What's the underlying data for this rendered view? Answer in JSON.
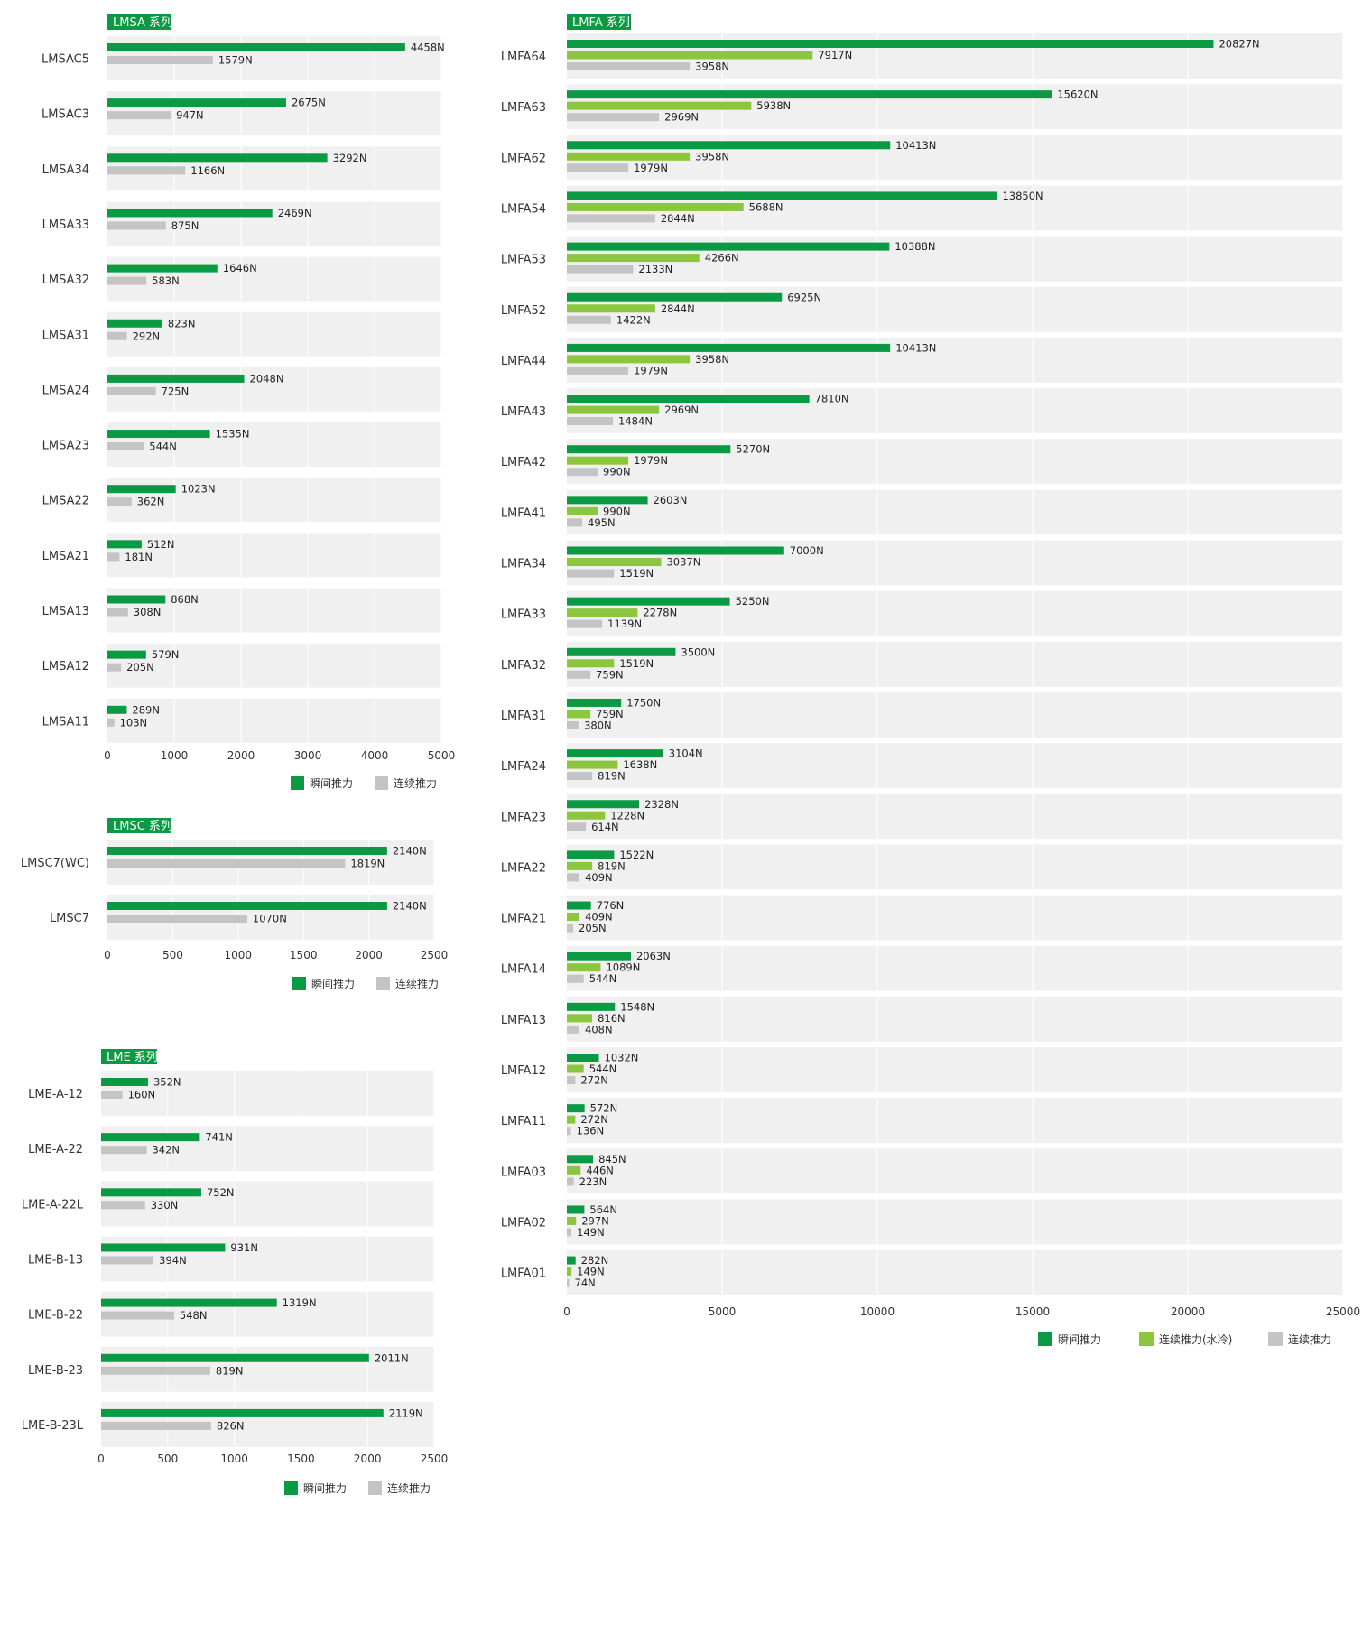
{
  "chart_data": [
    {
      "type": "bar",
      "title": "LMSA 系列",
      "xlim": [
        0,
        5000
      ],
      "xticks": [
        0,
        1000,
        2000,
        3000,
        4000,
        5000
      ],
      "categories": [
        "LMSAC5",
        "LMSAC3",
        "LMSA34",
        "LMSA33",
        "LMSA32",
        "LMSA31",
        "LMSA24",
        "LMSA23",
        "LMSA22",
        "LMSA21",
        "LMSA13",
        "LMSA12",
        "LMSA11"
      ],
      "series": [
        {
          "name": "瞬间推力",
          "color": "#0b9a43",
          "values": [
            4458,
            2675,
            3292,
            2469,
            1646,
            823,
            2048,
            1535,
            1023,
            512,
            868,
            579,
            289
          ]
        },
        {
          "name": "连续推力",
          "color": "#c4c4c4",
          "values": [
            1579,
            947,
            1166,
            875,
            583,
            292,
            725,
            544,
            362,
            181,
            308,
            205,
            103
          ]
        }
      ],
      "value_suffix": "N",
      "legend": "bottom-right",
      "grid": true
    },
    {
      "type": "bar",
      "title": "LMSC 系列",
      "xlim": [
        0,
        2500
      ],
      "xticks": [
        0,
        500,
        1000,
        1500,
        2000,
        2500
      ],
      "categories": [
        "LMSC7(WC)",
        "LMSC7"
      ],
      "series": [
        {
          "name": "瞬间推力",
          "color": "#0b9a43",
          "values": [
            2140,
            2140
          ]
        },
        {
          "name": "连续推力",
          "color": "#c4c4c4",
          "values": [
            1819,
            1070
          ]
        }
      ],
      "value_suffix": "N",
      "legend": "bottom-right",
      "grid": true
    },
    {
      "type": "bar",
      "title": "LME 系列",
      "xlim": [
        0,
        2500
      ],
      "xticks": [
        0,
        500,
        1000,
        1500,
        2000,
        2500
      ],
      "categories": [
        "LME-A-12",
        "LME-A-22",
        "LME-A-22L",
        "LME-B-13",
        "LME-B-22",
        "LME-B-23",
        "LME-B-23L"
      ],
      "series": [
        {
          "name": "瞬间推力",
          "color": "#0b9a43",
          "values": [
            352,
            741,
            752,
            931,
            1319,
            2011,
            2119
          ]
        },
        {
          "name": "连续推力",
          "color": "#c4c4c4",
          "values": [
            160,
            342,
            330,
            394,
            548,
            819,
            826
          ]
        }
      ],
      "value_suffix": "N",
      "legend": "bottom-right",
      "grid": true
    },
    {
      "type": "bar",
      "title": "LMFA 系列",
      "xlim": [
        0,
        25000
      ],
      "xticks": [
        0,
        5000,
        10000,
        15000,
        20000,
        25000
      ],
      "categories": [
        "LMFA64",
        "LMFA63",
        "LMFA62",
        "LMFA54",
        "LMFA53",
        "LMFA52",
        "LMFA44",
        "LMFA43",
        "LMFA42",
        "LMFA41",
        "LMFA34",
        "LMFA33",
        "LMFA32",
        "LMFA31",
        "LMFA24",
        "LMFA23",
        "LMFA22",
        "LMFA21",
        "LMFA14",
        "LMFA13",
        "LMFA12",
        "LMFA11",
        "LMFA03",
        "LMFA02",
        "LMFA01"
      ],
      "series": [
        {
          "name": "瞬间推力",
          "color": "#0b9a43",
          "values": [
            20827,
            15620,
            10413,
            13850,
            10388,
            6925,
            10413,
            7810,
            5270,
            2603,
            7000,
            5250,
            3500,
            1750,
            3104,
            2328,
            1522,
            776,
            2063,
            1548,
            1032,
            572,
            845,
            564,
            282
          ]
        },
        {
          "name": "连续推力(水冷)",
          "color": "#8cc63f",
          "values": [
            7917,
            5938,
            3958,
            5688,
            4266,
            2844,
            3958,
            2969,
            1979,
            990,
            3037,
            2278,
            1519,
            759,
            1638,
            1228,
            819,
            409,
            1089,
            816,
            544,
            272,
            446,
            297,
            149
          ]
        },
        {
          "name": "连续推力",
          "color": "#c4c4c4",
          "values": [
            3958,
            2969,
            1979,
            2844,
            2133,
            1422,
            1979,
            1484,
            990,
            495,
            1519,
            1139,
            759,
            380,
            819,
            614,
            409,
            205,
            544,
            408,
            272,
            136,
            223,
            149,
            74
          ]
        }
      ],
      "value_suffix": "N",
      "legend": "bottom-right",
      "grid": true
    }
  ]
}
